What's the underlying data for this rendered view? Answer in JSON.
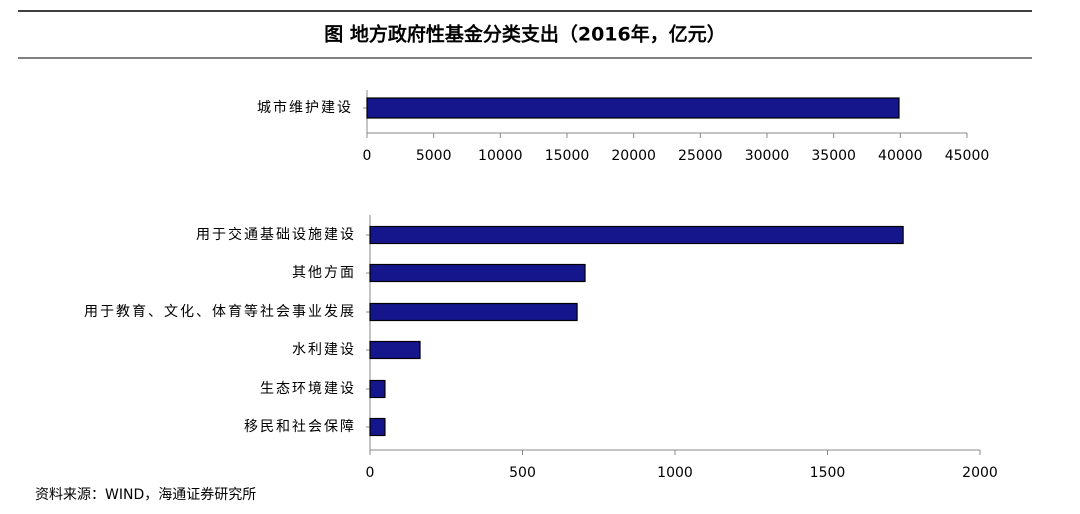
{
  "title": "图  地方政府性基金分类支出（2016年，亿元）",
  "source": "资料来源：WIND，海通证券研究所",
  "chart_data": [
    {
      "type": "bar",
      "orientation": "horizontal",
      "color": "#16168c",
      "categories": [
        "城市维护建设"
      ],
      "values": [
        39900
      ],
      "xlim": [
        0,
        45000
      ],
      "xticks": [
        0,
        5000,
        10000,
        15000,
        20000,
        25000,
        30000,
        35000,
        40000,
        45000
      ]
    },
    {
      "type": "bar",
      "orientation": "horizontal",
      "color": "#16168c",
      "categories": [
        "用于交通基础设施建设",
        "其他方面",
        "用于教育、文化、体育等社会事业发展",
        "水利建设",
        "生态环境建设",
        "移民和社会保障"
      ],
      "values": [
        1748,
        705,
        679,
        164,
        49,
        49
      ],
      "xlim": [
        0,
        2000
      ],
      "xticks": [
        0,
        500,
        1000,
        1500,
        2000
      ]
    }
  ]
}
